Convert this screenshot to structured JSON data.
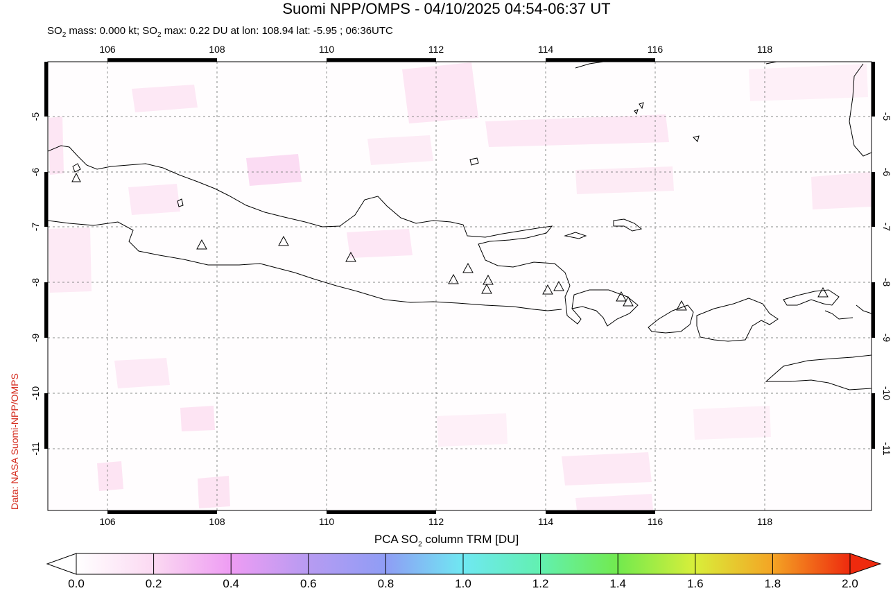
{
  "title": "Suomi NPP/OMPS - 04/10/2025 04:54-06:37 UT",
  "subtitle": {
    "prefix": "SO",
    "sub": "2",
    "mid": " mass: 0.000 kt; SO",
    "sub2": "2",
    "rest": " max: 0.22 DU at lon: 108.94 lat: -5.95 ; 06:36UTC"
  },
  "credit": "Data: NASA Suomi-NPP/OMPS",
  "map": {
    "lon_range": [
      104.9,
      120.0
    ],
    "lat_range": [
      -12.1,
      -4.0
    ],
    "x_ticks": [
      "106",
      "108",
      "110",
      "112",
      "114",
      "116",
      "118"
    ],
    "y_ticks": [
      "-5",
      "-6",
      "-7",
      "-8",
      "-9",
      "-10",
      "-11"
    ],
    "volcano_marker": "triangle-icon"
  },
  "colorbar": {
    "label_prefix": "PCA SO",
    "label_sub": "2",
    "label_rest": " column TRM [DU]",
    "ticks": [
      "0.0",
      "0.2",
      "0.4",
      "0.6",
      "0.8",
      "1.0",
      "1.2",
      "1.4",
      "1.6",
      "1.8",
      "2.0"
    ],
    "colors": [
      "#ffffff",
      "#fbd9f2",
      "#ee9cf3",
      "#b79bf2",
      "#8f9df5",
      "#6fe8f2",
      "#62f0b0",
      "#72ea4e",
      "#d9ee3a",
      "#f4a424",
      "#ee2a0e"
    ]
  }
}
